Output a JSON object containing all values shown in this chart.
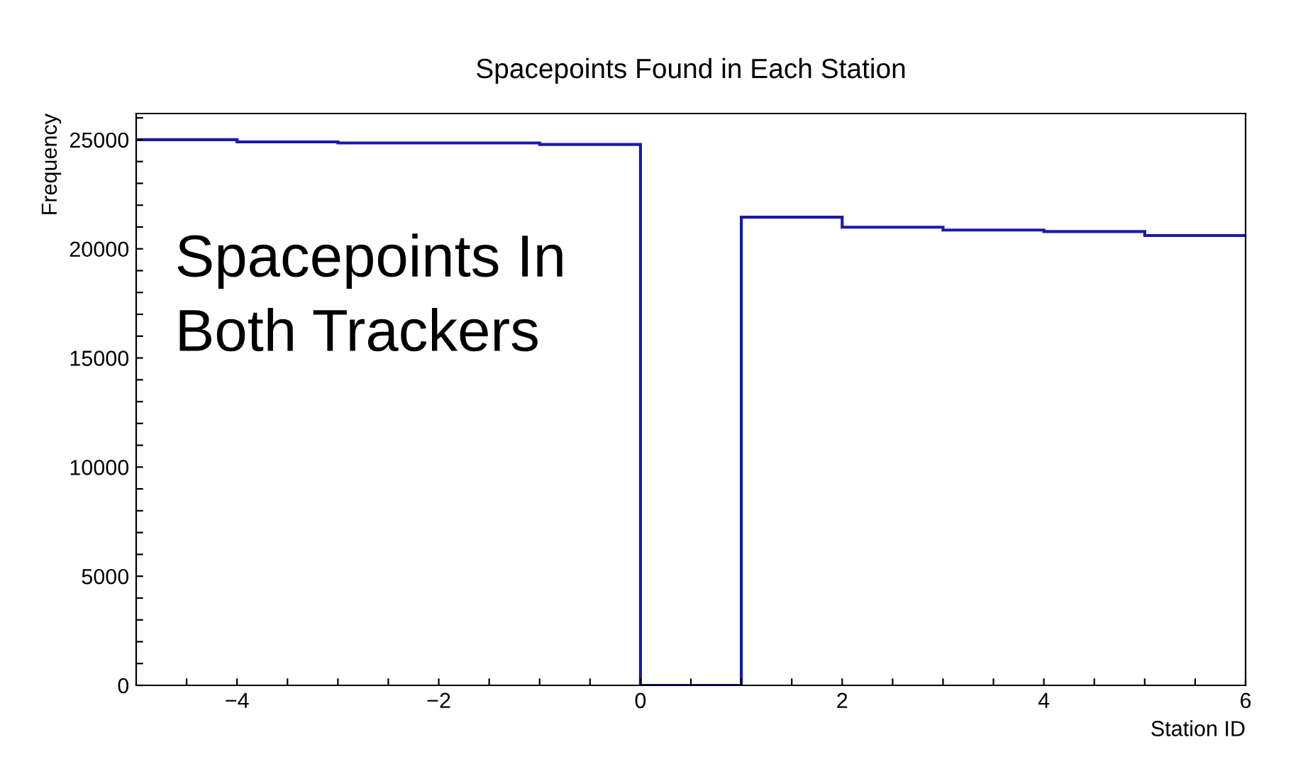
{
  "chart_data": {
    "type": "histogram",
    "title": "Spacepoints Found in Each Station",
    "xlabel": "Station ID",
    "ylabel": "Frequency",
    "annotations": [
      "Spacepoints In\nBoth Trackers"
    ],
    "bins": [
      -5,
      -4,
      -3,
      -2,
      -1,
      0,
      1,
      2,
      3,
      4,
      5,
      6
    ],
    "values": [
      25000,
      24900,
      24850,
      24850,
      24780,
      0,
      21450,
      20990,
      20860,
      20790,
      20610
    ],
    "color": "#1a1aa8",
    "xlim": [
      -5,
      6
    ],
    "xticks": [
      {
        "value": -4.5,
        "label": null
      },
      {
        "value": -4,
        "label": "−4"
      },
      {
        "value": -3.5,
        "label": null
      },
      {
        "value": -3,
        "label": null
      },
      {
        "value": -2.5,
        "label": null
      },
      {
        "value": -2,
        "label": "−2"
      },
      {
        "value": -1.5,
        "label": null
      },
      {
        "value": -1,
        "label": null
      },
      {
        "value": -0.5,
        "label": null
      },
      0,
      {
        "value": 0.5,
        "label": null
      },
      {
        "value": 1,
        "label": null
      },
      {
        "value": 1.5,
        "label": null
      },
      2,
      {
        "value": 2.5,
        "label": null
      },
      {
        "value": 3,
        "label": null
      },
      {
        "value": 3.5,
        "label": null
      },
      4,
      {
        "value": 4.5,
        "label": null
      },
      {
        "value": 5,
        "label": null
      },
      {
        "value": 5.5,
        "label": null
      },
      6
    ],
    "ylim": [
      0,
      26200
    ],
    "yticks": [
      0,
      {
        "value": 1000,
        "label": null
      },
      {
        "value": 2000,
        "label": null
      },
      {
        "value": 3000,
        "label": null
      },
      {
        "value": 4000,
        "label": null
      },
      5000,
      {
        "value": 6000,
        "label": null
      },
      {
        "value": 7000,
        "label": null
      },
      {
        "value": 8000,
        "label": null
      },
      {
        "value": 9000,
        "label": null
      },
      10000,
      {
        "value": 11000,
        "label": null
      },
      {
        "value": 12000,
        "label": null
      },
      {
        "value": 13000,
        "label": null
      },
      {
        "value": 14000,
        "label": null
      },
      15000,
      {
        "value": 16000,
        "label": null
      },
      {
        "value": 17000,
        "label": null
      },
      {
        "value": 18000,
        "label": null
      },
      {
        "value": 19000,
        "label": null
      },
      20000,
      {
        "value": 21000,
        "label": null
      },
      {
        "value": 22000,
        "label": null
      },
      {
        "value": 23000,
        "label": null
      },
      {
        "value": 24000,
        "label": null
      },
      25000,
      {
        "value": 26000,
        "label": null
      }
    ],
    "grid": false,
    "legend": false
  }
}
